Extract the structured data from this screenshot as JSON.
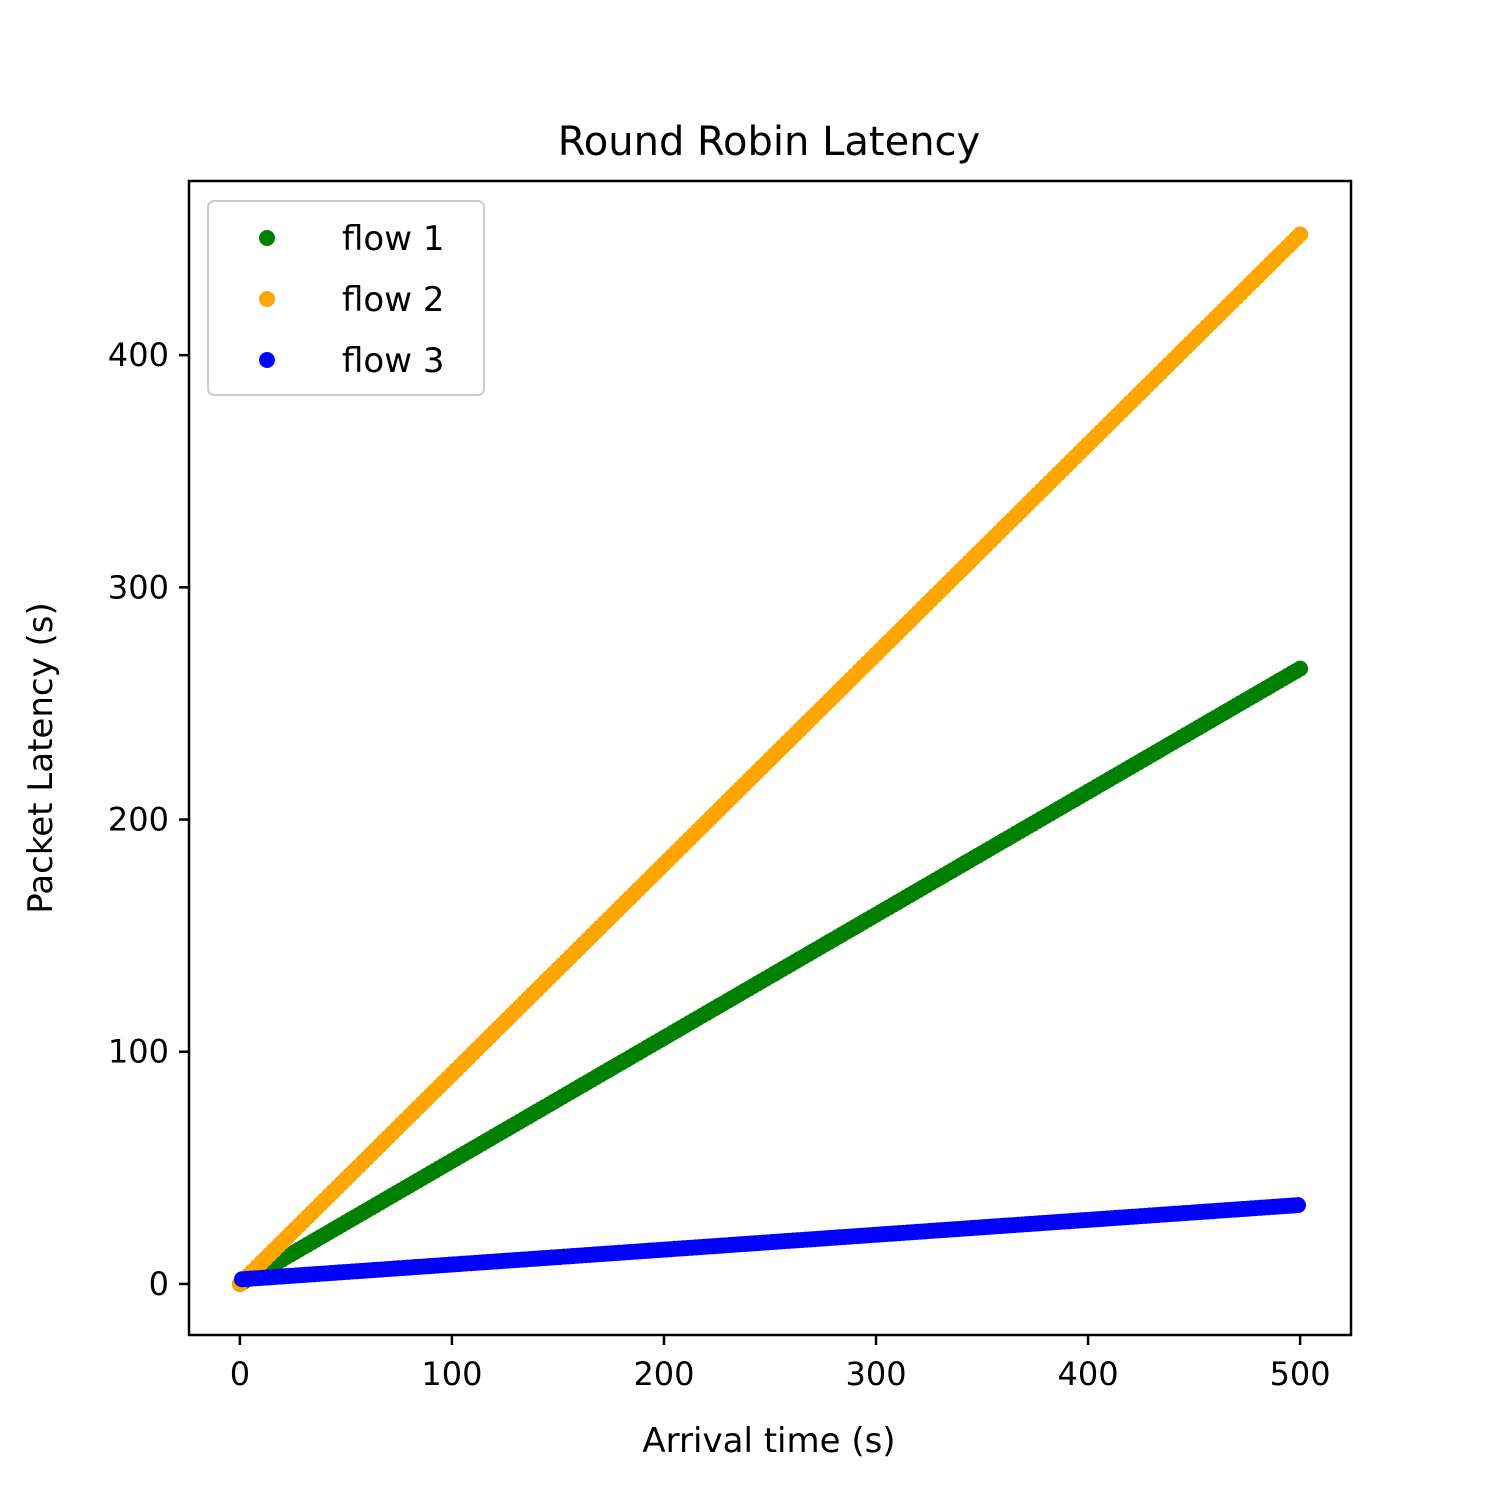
{
  "chart_data": {
    "type": "scatter",
    "title": "Round Robin Latency",
    "xlabel": "Arrival time (s)",
    "ylabel": "Packet Latency (s)",
    "xlim": [
      -24,
      524
    ],
    "ylim": [
      -22,
      475
    ],
    "xticks": [
      0,
      100,
      200,
      300,
      400,
      500
    ],
    "yticks": [
      0,
      100,
      200,
      300,
      400
    ],
    "grid": false,
    "legend_position": "top-left",
    "series": [
      {
        "name": "flow 1",
        "color": "#008000",
        "x_start": 0,
        "x_end": 500,
        "x_step": 2,
        "y_start": 0,
        "y_end": 265
      },
      {
        "name": "flow 2",
        "color": "#ffa500",
        "x_start": 0,
        "x_end": 500,
        "x_step": 2,
        "y_start": 0,
        "y_end": 452
      },
      {
        "name": "flow 3",
        "color": "#0000ff",
        "x_start": 1,
        "x_end": 500,
        "x_step": 2,
        "y_start": 2,
        "y_end": 34
      }
    ]
  }
}
